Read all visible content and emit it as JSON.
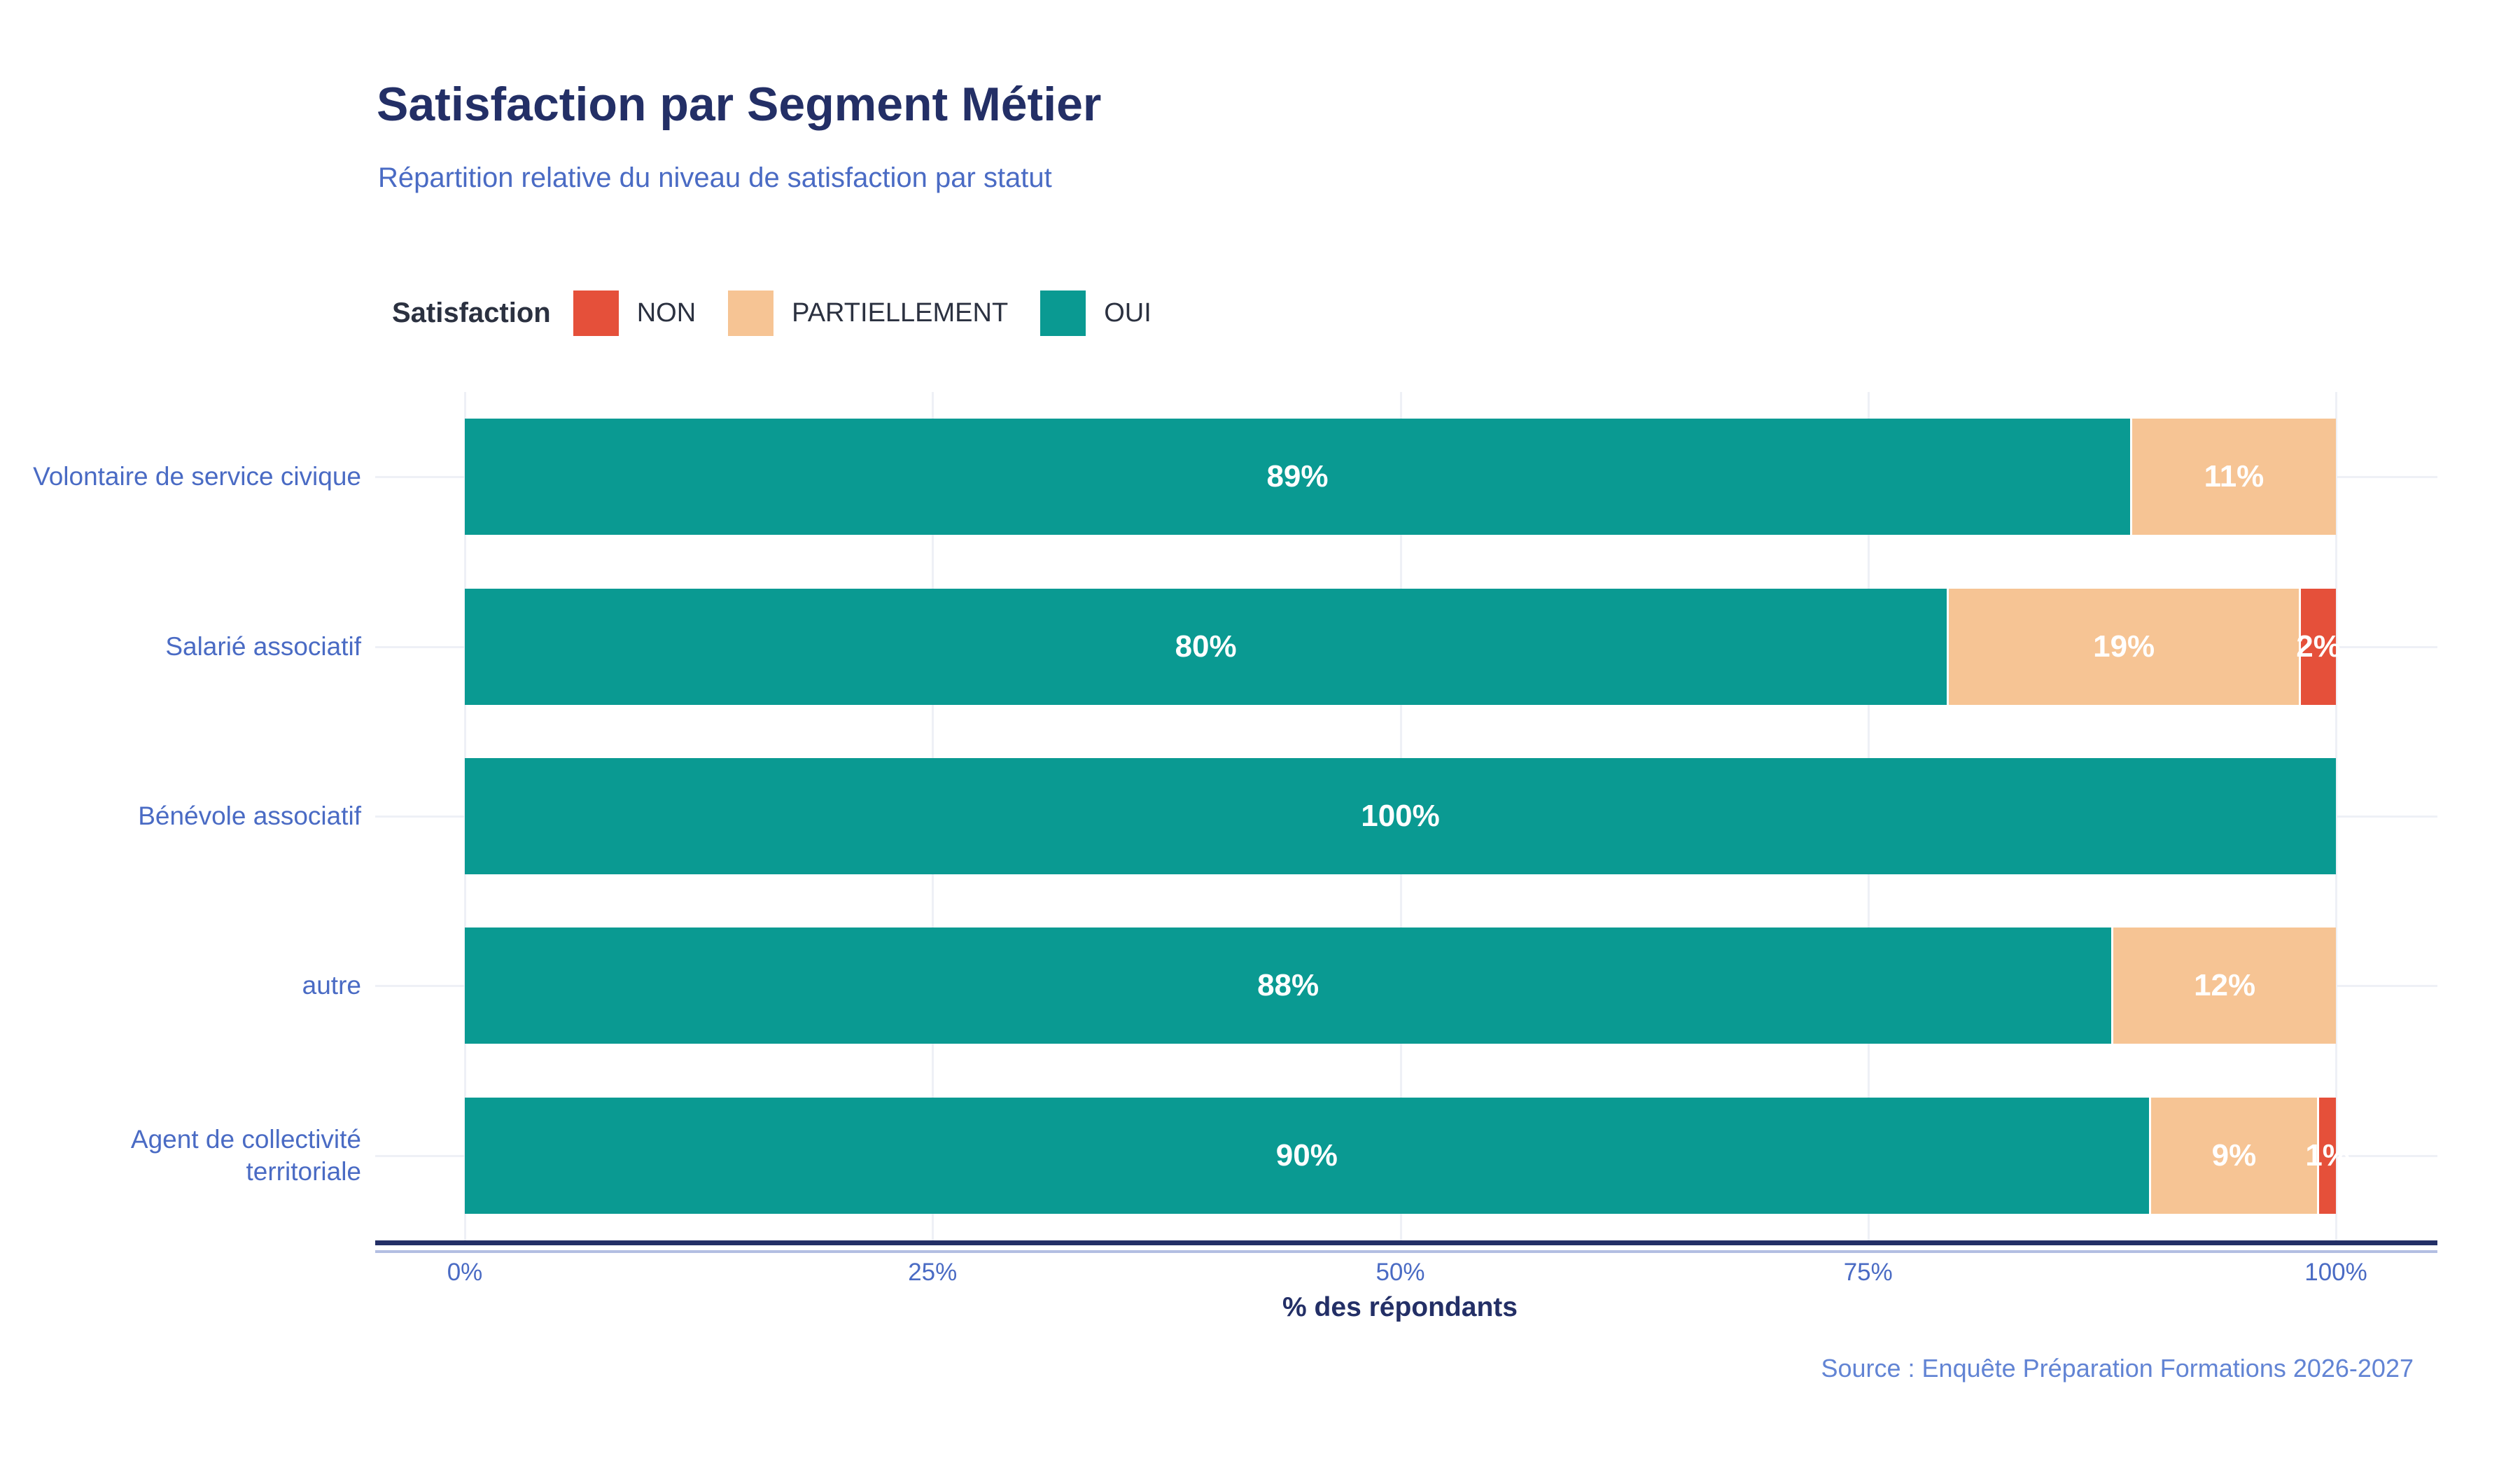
{
  "chart_data": {
    "type": "bar",
    "orientation": "horizontal",
    "stacked": true,
    "title": "Satisfaction par Segment Métier",
    "subtitle": "Répartition relative du niveau de satisfaction par statut",
    "legend_title": "Satisfaction",
    "legend_position": "top-left",
    "grid": true,
    "series_legend": [
      {
        "name": "NON",
        "color": "#E5503A"
      },
      {
        "name": "PARTIELLEMENT",
        "color": "#F6C494"
      },
      {
        "name": "OUI",
        "color": "#0A9A92"
      }
    ],
    "categories": [
      "Volontaire de service civique",
      "Salarié associatif",
      "Bénévole associatif",
      "autre",
      "Agent de collectivité territoriale"
    ],
    "rows": [
      {
        "category": "Volontaire de service civique",
        "segments": [
          {
            "name": "OUI",
            "value": 89,
            "label": "89%"
          },
          {
            "name": "PARTIELLEMENT",
            "value": 11,
            "label": "11%"
          }
        ]
      },
      {
        "category": "Salarié associatif",
        "segments": [
          {
            "name": "OUI",
            "value": 80,
            "label": "80%"
          },
          {
            "name": "PARTIELLEMENT",
            "value": 19,
            "label": "19%"
          },
          {
            "name": "NON",
            "value": 2,
            "label": "2%"
          }
        ]
      },
      {
        "category": "Bénévole associatif",
        "segments": [
          {
            "name": "OUI",
            "value": 100,
            "label": "100%"
          }
        ]
      },
      {
        "category": "autre",
        "segments": [
          {
            "name": "OUI",
            "value": 88,
            "label": "88%"
          },
          {
            "name": "PARTIELLEMENT",
            "value": 12,
            "label": "12%"
          }
        ]
      },
      {
        "category": "Agent de collectivité territoriale",
        "segments": [
          {
            "name": "OUI",
            "value": 90,
            "label": "90%"
          },
          {
            "name": "PARTIELLEMENT",
            "value": 9,
            "label": "9%"
          },
          {
            "name": "NON",
            "value": 1,
            "label": "1%"
          }
        ]
      }
    ],
    "x_ticks": [
      "0%",
      "25%",
      "50%",
      "75%",
      "100%"
    ],
    "xlim": [
      0,
      100
    ],
    "xlabel": "% des répondants",
    "ylabel": "",
    "source": "Source : Enquête Préparation Formations 2026-2027",
    "colors": {
      "title": "#232F66",
      "subtitle": "#4A6BC4",
      "axis_labels": "#4A6BC4",
      "axis_line": "#232F66",
      "bar_label": "#ffffff",
      "gridline": "#EEF0F6",
      "source": "#6284D4"
    }
  }
}
